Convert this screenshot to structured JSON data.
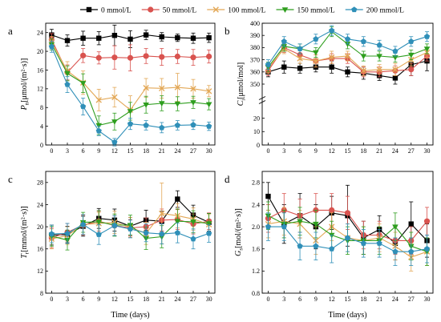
{
  "legend": [
    {
      "label": "0 mmol/L",
      "color": "#000000",
      "marker": "square"
    },
    {
      "label": "50 mmol/L",
      "color": "#d9534f",
      "marker": "circle"
    },
    {
      "label": "100 mmol/L",
      "color": "#e3a857",
      "marker": "x"
    },
    {
      "label": "150 mmol/L",
      "color": "#2e9e1e",
      "marker": "triangle-down"
    },
    {
      "label": "200 mmol/L",
      "color": "#2f8fb8",
      "marker": "pentagon"
    }
  ],
  "chart_data": [
    {
      "type": "line",
      "panel_label": "a",
      "xlabel": "",
      "ylabel_main": "P",
      "ylabel_sub": "n",
      "ylabel_unit": "[μmol/(m²·s)]",
      "x": [
        0,
        3,
        6,
        9,
        12,
        15,
        18,
        21,
        24,
        27,
        30
      ],
      "xticks": [
        "0",
        "3",
        "6",
        "9",
        "12",
        "15",
        "18",
        "21",
        "24",
        "27",
        "30"
      ],
      "ylim": [
        0,
        26
      ],
      "yticks": [
        0,
        4,
        8,
        12,
        16,
        20,
        24
      ],
      "series": [
        {
          "values": [
            23.5,
            22.3,
            22.8,
            22.8,
            23.4,
            22.6,
            23.5,
            23.1,
            22.9,
            22.8,
            22.9
          ],
          "err": [
            1.2,
            1.2,
            1.5,
            1.4,
            2.2,
            1.8,
            1.0,
            0.9,
            0.8,
            1.1,
            1.0
          ]
        },
        {
          "values": [
            22.5,
            15.5,
            19.1,
            18.6,
            18.7,
            18.6,
            19.0,
            18.8,
            18.9,
            18.7,
            18.9
          ],
          "err": [
            1.3,
            1.6,
            1.5,
            1.3,
            2.5,
            2.8,
            1.6,
            1.8,
            1.5,
            1.7,
            1.4
          ]
        },
        {
          "values": [
            22.0,
            15.8,
            13.3,
            9.6,
            10.2,
            7.5,
            12.2,
            12.1,
            12.3,
            12.0,
            11.5
          ],
          "err": [
            1.2,
            2.0,
            2.5,
            2.3,
            2.1,
            3.0,
            2.0,
            2.1,
            3.0,
            2.0,
            1.2
          ]
        },
        {
          "values": [
            21.5,
            15.3,
            13.2,
            4.2,
            5.0,
            7.2,
            8.6,
            8.9,
            8.8,
            9.1,
            8.7
          ],
          "err": [
            1.2,
            1.6,
            2.0,
            2.0,
            1.8,
            1.9,
            1.8,
            1.6,
            1.5,
            1.3,
            1.2
          ]
        },
        {
          "values": [
            21.0,
            12.9,
            8.2,
            3.0,
            0.6,
            4.5,
            4.2,
            3.7,
            4.2,
            4.3,
            4.0
          ],
          "err": [
            1.2,
            1.7,
            1.8,
            1.0,
            0.8,
            1.2,
            1.0,
            1.1,
            1.0,
            1.0,
            0.9
          ]
        }
      ]
    },
    {
      "type": "line",
      "panel_label": "b",
      "xlabel": "",
      "ylabel_main": "C",
      "ylabel_sub": "i",
      "ylabel_unit": "[μmol/mol]",
      "x": [
        0,
        3,
        6,
        9,
        12,
        15,
        18,
        21,
        24,
        27,
        30
      ],
      "xticks": [
        "0",
        "3",
        "6",
        "9",
        "12",
        "15",
        "18",
        "21",
        "24",
        "27",
        "30"
      ],
      "ylim_lower": [
        0,
        30
      ],
      "yticks_lower": [
        0,
        10,
        20
      ],
      "ylim_upper": [
        340,
        400
      ],
      "yticks_upper": [
        350,
        360,
        370,
        380,
        390,
        400
      ],
      "axis_break": true,
      "series": [
        {
          "values": [
            360,
            364,
            363,
            364,
            364,
            360,
            359,
            357,
            355,
            366,
            369
          ],
          "err": [
            4,
            5,
            4,
            4,
            5,
            4,
            5,
            4,
            5,
            9,
            8
          ]
        },
        {
          "values": [
            361,
            380,
            374,
            369,
            371,
            371,
            360,
            360,
            361,
            362,
            373
          ],
          "err": [
            4,
            4,
            4,
            5,
            4,
            4,
            4,
            4,
            4,
            5,
            4
          ]
        },
        {
          "values": [
            363,
            379,
            371,
            369,
            372,
            373,
            361,
            362,
            362,
            370,
            376
          ],
          "err": [
            4,
            4,
            4,
            5,
            5,
            4,
            4,
            4,
            5,
            5,
            4
          ]
        },
        {
          "values": [
            364,
            381,
            379,
            376,
            393,
            383,
            373,
            373,
            372,
            374,
            379
          ],
          "err": [
            4,
            4,
            4,
            4,
            4,
            4,
            4,
            4,
            4,
            4,
            4
          ]
        },
        {
          "values": [
            366,
            385,
            379,
            387,
            394,
            387,
            385,
            382,
            377,
            385,
            389
          ],
          "err": [
            4,
            4,
            4,
            4,
            4,
            4,
            4,
            4,
            4,
            4,
            4
          ]
        }
      ]
    },
    {
      "type": "line",
      "panel_label": "c",
      "xlabel": "Time (days)",
      "ylabel_main": "T",
      "ylabel_sub": "r",
      "ylabel_unit": "[mmol/(m²·s)]",
      "x": [
        0,
        3,
        6,
        9,
        12,
        15,
        18,
        21,
        24,
        27,
        30
      ],
      "xticks": [
        "0",
        "3",
        "6",
        "9",
        "12",
        "15",
        "18",
        "21",
        "24",
        "27",
        "30"
      ],
      "ylim": [
        8,
        30
      ],
      "yticks": [
        8,
        12,
        16,
        20,
        24,
        28
      ],
      "series": [
        {
          "values": [
            18.5,
            18.6,
            20.1,
            21.5,
            21.2,
            20.1,
            21.2,
            21.0,
            25.0,
            22.1,
            20.8
          ],
          "err": [
            1.8,
            1.5,
            1.8,
            1.8,
            2.0,
            1.6,
            1.8,
            1.8,
            1.5,
            1.8,
            1.6
          ]
        },
        {
          "values": [
            18.0,
            19.0,
            20.3,
            21.0,
            20.2,
            19.8,
            20.0,
            21.2,
            21.3,
            20.5,
            21.0
          ],
          "err": [
            1.8,
            1.6,
            1.8,
            1.8,
            1.8,
            1.5,
            1.6,
            2.0,
            1.8,
            1.8,
            1.5
          ]
        },
        {
          "values": [
            17.8,
            18.4,
            20.4,
            20.6,
            20.8,
            19.9,
            18.8,
            22.4,
            22.0,
            21.4,
            20.4
          ],
          "err": [
            1.8,
            1.6,
            1.8,
            2.0,
            2.0,
            1.8,
            2.0,
            5.5,
            2.2,
            2.0,
            1.8
          ]
        },
        {
          "values": [
            18.3,
            17.6,
            20.8,
            20.9,
            20.3,
            20.3,
            17.9,
            18.2,
            21.0,
            20.9,
            20.6
          ],
          "err": [
            1.8,
            1.8,
            1.8,
            2.0,
            2.0,
            1.8,
            2.0,
            2.0,
            2.2,
            2.0,
            1.8
          ]
        },
        {
          "values": [
            18.7,
            18.8,
            20.4,
            18.6,
            20.2,
            19.6,
            18.9,
            18.7,
            18.9,
            17.8,
            18.8
          ],
          "err": [
            1.6,
            1.8,
            1.8,
            1.8,
            1.8,
            1.6,
            1.6,
            1.8,
            1.8,
            1.8,
            1.6
          ]
        }
      ]
    },
    {
      "type": "line",
      "panel_label": "d",
      "xlabel": "Time (days)",
      "ylabel_main": "G",
      "ylabel_sub": "s",
      "ylabel_unit": "[mol/(m²·s)]",
      "x": [
        0,
        3,
        6,
        9,
        12,
        15,
        18,
        21,
        24,
        27,
        30
      ],
      "xticks": [
        "0",
        "3",
        "6",
        "9",
        "12",
        "15",
        "18",
        "21",
        "24",
        "27",
        "30"
      ],
      "ylim": [
        0.8,
        3.0
      ],
      "yticks": [
        0.8,
        1.2,
        1.6,
        2.0,
        2.4,
        2.8
      ],
      "tick_decimals": 1,
      "series": [
        {
          "values": [
            2.55,
            2.05,
            2.2,
            2.0,
            2.25,
            2.2,
            1.8,
            1.95,
            1.7,
            2.05,
            1.75
          ],
          "err": [
            0.25,
            0.35,
            0.4,
            0.4,
            0.3,
            0.55,
            0.3,
            0.25,
            0.3,
            0.4,
            0.3
          ]
        },
        {
          "values": [
            2.15,
            2.3,
            2.2,
            2.3,
            2.3,
            2.25,
            1.85,
            1.85,
            1.75,
            1.75,
            2.1
          ],
          "err": [
            0.25,
            0.3,
            0.3,
            0.3,
            0.3,
            0.3,
            0.25,
            0.25,
            0.25,
            0.25,
            0.25
          ]
        },
        {
          "values": [
            2.05,
            2.1,
            2.05,
            1.75,
            2.0,
            1.8,
            1.75,
            1.8,
            1.65,
            1.45,
            1.55
          ],
          "err": [
            0.25,
            0.25,
            0.25,
            0.25,
            0.25,
            0.25,
            0.25,
            0.25,
            0.25,
            0.25,
            0.25
          ]
        },
        {
          "values": [
            2.2,
            2.05,
            2.1,
            2.05,
            1.85,
            1.75,
            1.75,
            1.75,
            2.0,
            1.65,
            1.55
          ],
          "err": [
            0.25,
            0.25,
            0.25,
            0.25,
            0.25,
            0.25,
            0.25,
            0.25,
            0.25,
            0.25,
            0.25
          ]
        },
        {
          "values": [
            2.0,
            2.0,
            1.65,
            1.65,
            1.6,
            1.8,
            1.7,
            1.7,
            1.55,
            1.55,
            1.6
          ],
          "err": [
            0.25,
            0.25,
            0.25,
            0.25,
            0.25,
            0.25,
            0.25,
            0.25,
            0.25,
            0.25,
            0.25
          ]
        }
      ]
    }
  ]
}
